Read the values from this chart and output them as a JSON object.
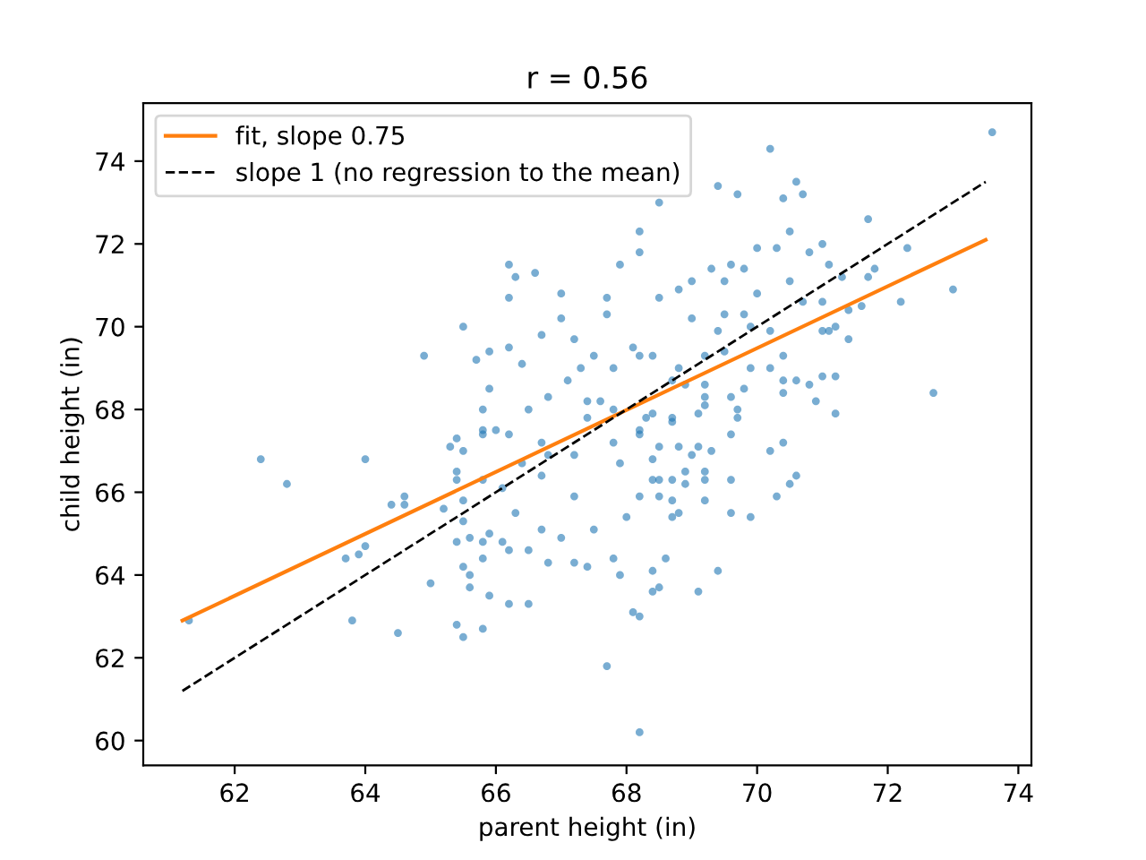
{
  "chart_data": {
    "type": "scatter",
    "title": "r = 0.56",
    "xlabel": "parent height (in)",
    "ylabel": "child height (in)",
    "xlim": [
      60.6,
      74.2
    ],
    "ylim": [
      59.4,
      75.4
    ],
    "xticks": [
      62,
      64,
      66,
      68,
      70,
      72,
      74
    ],
    "yticks": [
      60,
      62,
      64,
      66,
      68,
      70,
      72,
      74
    ],
    "grid": false,
    "legend": "top left",
    "series": [
      {
        "color": "#1f77b4",
        "marker": "circle",
        "x": [
          61.3,
          62.4,
          62.8,
          63.7,
          63.9,
          64.0,
          64.0,
          63.8,
          64.4,
          64.6,
          64.6,
          64.5,
          65.0,
          64.9,
          65.2,
          65.4,
          65.5,
          65.5,
          65.8,
          65.9,
          66.2,
          66.2,
          66.2,
          66.6,
          66.3,
          67.0,
          67.0,
          67.7,
          67.7,
          67.9,
          68.2,
          68.2,
          68.5,
          65.9,
          66.2,
          65.9,
          65.8,
          65.4,
          65.8,
          65.4,
          65.5,
          65.4,
          65.5,
          65.6,
          66.5,
          67.2,
          66.8,
          66.7,
          67.4,
          67.8,
          67.9,
          68.2,
          68.0,
          67.8,
          67.9,
          67.7,
          68.2,
          68.1,
          68.2,
          67.4,
          67.2,
          66.8,
          66.5,
          66.2,
          66.1,
          66.7,
          66.3,
          67.0,
          67.5,
          67.2,
          66.7,
          66.4,
          66.1,
          65.5,
          65.8,
          66.8,
          67.1,
          67.3,
          67.4,
          67.6,
          67.8,
          67.5,
          67.2,
          66.7,
          66.4,
          66.5,
          66.2,
          66.0,
          68.1,
          67.8,
          68.2,
          68.4,
          68.4,
          68.5,
          68.4,
          68.5,
          70.2,
          69.4,
          69.7,
          70.6,
          70.4,
          70.7,
          70.3,
          70.0,
          70.5,
          70.8,
          71.0,
          71.1,
          70.5,
          69.8,
          69.6,
          69.3,
          69.5,
          69.0,
          68.8,
          68.5,
          69.0,
          69.5,
          69.8,
          70.0,
          69.9,
          69.4,
          70.2,
          70.7,
          71.0,
          71.2,
          71.0,
          70.4,
          70.2,
          69.9,
          69.5,
          69.2,
          68.8,
          68.4,
          68.2,
          68.7,
          68.9,
          69.2,
          69.8,
          70.4,
          70.6,
          71.0,
          70.8,
          70.9,
          70.4,
          69.6,
          69.7,
          69.7,
          69.2,
          69.2,
          69.1,
          68.7,
          68.7,
          68.4,
          68.3,
          68.2,
          68.5,
          68.8,
          69.0,
          69.1,
          69.3,
          69.6,
          69.2,
          69.2,
          68.9,
          68.9,
          68.7,
          68.5,
          68.7,
          68.7,
          68.8,
          69.2,
          69.6,
          69.6,
          69.9,
          70.2,
          70.4,
          70.3,
          70.6,
          70.5,
          68.6,
          68.4,
          69.1,
          69.4,
          73.6,
          71.7,
          72.3,
          71.3,
          71.7,
          71.8,
          71.4,
          71.6,
          72.2,
          73.0,
          71.1,
          71.4,
          71.2,
          71.2,
          72.7,
          65.3,
          65.4,
          65.5,
          65.7,
          65.8,
          65.6,
          65.6,
          65.8,
          65.9,
          65.8
        ],
        "values": [
          62.9,
          66.8,
          66.2,
          64.4,
          64.5,
          64.7,
          66.8,
          62.9,
          65.7,
          65.9,
          65.7,
          62.6,
          63.8,
          69.3,
          65.6,
          62.8,
          62.5,
          70.0,
          62.7,
          63.5,
          63.3,
          71.5,
          70.7,
          71.3,
          71.2,
          70.8,
          70.2,
          70.7,
          70.3,
          71.5,
          71.8,
          72.3,
          73.0,
          69.4,
          69.5,
          68.5,
          68.0,
          67.3,
          67.4,
          66.5,
          65.8,
          64.8,
          64.2,
          63.7,
          63.3,
          66.9,
          66.9,
          66.4,
          67.8,
          67.2,
          66.7,
          65.9,
          65.4,
          64.4,
          64.0,
          61.8,
          60.2,
          63.1,
          63.0,
          64.2,
          64.3,
          64.3,
          64.6,
          64.6,
          64.8,
          65.1,
          65.5,
          64.9,
          65.1,
          65.9,
          67.2,
          66.7,
          66.1,
          65.3,
          64.8,
          68.3,
          68.7,
          69.0,
          68.2,
          68.2,
          69.0,
          69.3,
          69.7,
          69.8,
          69.1,
          68.0,
          67.4,
          67.5,
          69.5,
          68.0,
          67.5,
          66.8,
          66.3,
          65.9,
          64.1,
          63.7,
          74.3,
          73.4,
          73.2,
          73.5,
          73.1,
          73.2,
          71.9,
          71.9,
          72.3,
          71.8,
          72.0,
          71.5,
          71.1,
          71.4,
          71.5,
          71.4,
          71.1,
          71.1,
          70.9,
          70.7,
          70.2,
          70.3,
          70.3,
          70.8,
          70.0,
          69.9,
          69.9,
          70.6,
          70.6,
          70.0,
          69.9,
          69.3,
          69.0,
          69.0,
          69.4,
          69.3,
          69.0,
          69.3,
          69.3,
          68.7,
          68.6,
          68.6,
          68.5,
          68.7,
          68.7,
          68.8,
          68.6,
          68.2,
          68.4,
          68.3,
          68.0,
          67.8,
          68.3,
          68.1,
          67.9,
          67.8,
          67.7,
          67.9,
          67.8,
          67.4,
          67.1,
          67.1,
          66.9,
          67.1,
          67.0,
          67.4,
          66.5,
          66.3,
          66.5,
          66.2,
          66.3,
          66.3,
          65.8,
          65.4,
          65.5,
          65.8,
          66.3,
          65.5,
          65.4,
          67.0,
          67.2,
          65.9,
          66.4,
          66.2,
          64.4,
          63.6,
          63.6,
          64.1,
          74.7,
          72.6,
          71.9,
          71.2,
          71.2,
          71.4,
          70.4,
          70.5,
          70.6,
          70.9,
          69.9,
          69.7,
          68.8,
          67.9,
          68.4,
          67.1,
          66.3,
          67.0,
          69.2,
          66.3,
          64.9,
          64.0,
          64.4,
          65.0,
          67.5
        ]
      },
      {
        "type": "line",
        "name": "fit, slope 0.75",
        "color": "#ff7f0e",
        "line_style": "solid",
        "marker": "none",
        "x": [
          61.2,
          73.5
        ],
        "values": [
          62.9,
          72.1
        ]
      },
      {
        "type": "line",
        "name": "slope 1 (no regression to the mean)",
        "color": "#000000",
        "line_style": "dashed",
        "marker": "none",
        "x": [
          61.2,
          73.5
        ],
        "values": [
          61.2,
          73.5
        ]
      }
    ]
  }
}
